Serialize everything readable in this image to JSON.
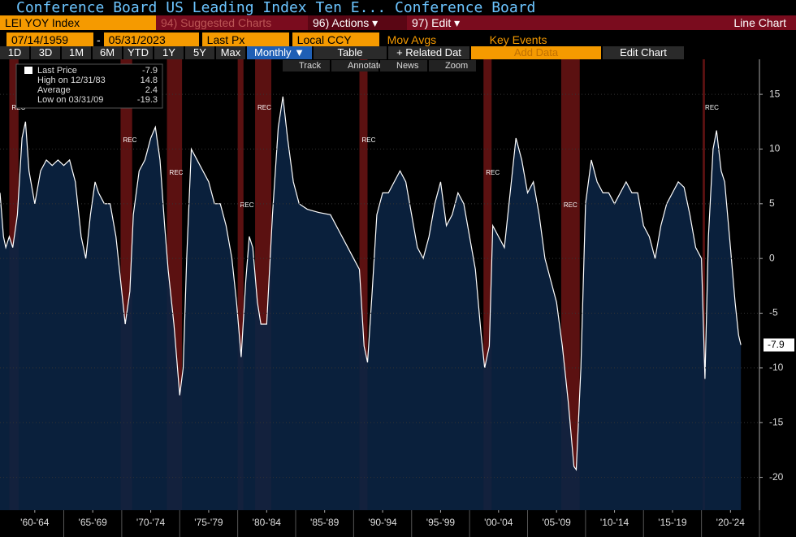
{
  "header": {
    "title": "Conference Board US Leading Index Ten E...  Conference Board",
    "ticker": "LEI YOY Index",
    "suggested": "94) Suggested Charts",
    "actions": "96) Actions ▾",
    "edit": "97) Edit ▾",
    "chart_kind": "Line Chart",
    "start_date": "07/14/1959",
    "dash": "-",
    "end_date": "05/31/2023",
    "field": "Last Px",
    "currency": "Local CCY",
    "mov_avgs": "Mov Avgs",
    "key_events": "Key Events",
    "periods": [
      "1D",
      "3D",
      "1M",
      "6M",
      "YTD",
      "1Y",
      "5Y",
      "Max"
    ],
    "frequency": "Monthly ▼",
    "table": "Table",
    "related": "+ Related Dat",
    "add_data": "Add Data",
    "edit_chart": "Edit Chart",
    "tools": [
      "Track",
      "Annotate",
      "News",
      "Zoom"
    ]
  },
  "legend": {
    "rows": [
      [
        "Last Price",
        "-7.9"
      ],
      [
        "High on 12/31/83",
        "14.8"
      ],
      [
        "Average",
        "2.4"
      ],
      [
        "Low on 03/31/09",
        "-19.3"
      ]
    ]
  },
  "chart_data": {
    "type": "area",
    "color": "#ffffff",
    "fill": "#0b2342",
    "xlim": [
      1959.5,
      2025.0
    ],
    "ylim": [
      -23,
      18.2
    ],
    "yticks": [
      15,
      10,
      5,
      0,
      -5,
      -10,
      -15,
      -20
    ],
    "xticks": [
      {
        "value": 1962.5,
        "label": "'60-'64"
      },
      {
        "value": 1967.5,
        "label": "'65-'69"
      },
      {
        "value": 1972.5,
        "label": "'70-'74"
      },
      {
        "value": 1977.5,
        "label": "'75-'79"
      },
      {
        "value": 1982.5,
        "label": "'80-'84"
      },
      {
        "value": 1987.5,
        "label": "'85-'89"
      },
      {
        "value": 1992.5,
        "label": "'90-'94"
      },
      {
        "value": 1997.5,
        "label": "'95-'99"
      },
      {
        "value": 2002.5,
        "label": "'00-'04"
      },
      {
        "value": 2007.5,
        "label": "'05-'09"
      },
      {
        "value": 2012.5,
        "label": "'10-'14"
      },
      {
        "value": 2017.5,
        "label": "'15-'19"
      },
      {
        "value": 2022.5,
        "label": "'20-'24"
      }
    ],
    "last_value_tag": "-7.9",
    "recession_label": "REC",
    "recessions": [
      [
        1960.3,
        1961.1
      ],
      [
        1969.9,
        1970.9
      ],
      [
        1973.9,
        1975.2
      ],
      [
        1980.0,
        1980.5
      ],
      [
        1981.5,
        1982.9
      ],
      [
        1990.5,
        1991.2
      ],
      [
        2001.2,
        2001.9
      ],
      [
        2007.9,
        2009.5
      ],
      [
        2020.1,
        2020.3
      ]
    ],
    "x": [
      1959.5,
      1959.8,
      1960.0,
      1960.3,
      1960.6,
      1961.0,
      1961.4,
      1961.7,
      1962.0,
      1962.5,
      1963.0,
      1963.5,
      1964.0,
      1964.5,
      1965.0,
      1965.5,
      1966.0,
      1966.5,
      1966.9,
      1967.3,
      1967.7,
      1968.0,
      1968.5,
      1969.0,
      1969.5,
      1970.0,
      1970.3,
      1970.7,
      1971.0,
      1971.5,
      1972.0,
      1972.5,
      1972.9,
      1973.3,
      1973.7,
      1974.0,
      1974.5,
      1975.0,
      1975.3,
      1975.6,
      1976.0,
      1976.5,
      1977.0,
      1977.5,
      1978.0,
      1978.5,
      1979.0,
      1979.5,
      1979.9,
      1980.3,
      1980.7,
      1981.0,
      1981.3,
      1981.7,
      1982.0,
      1982.5,
      1983.0,
      1983.5,
      1983.9,
      1984.3,
      1984.8,
      1985.3,
      1986.0,
      1987.0,
      1988.0,
      1989.0,
      1989.5,
      1990.0,
      1990.5,
      1990.9,
      1991.2,
      1991.6,
      1992.0,
      1992.5,
      1993.0,
      1993.5,
      1994.0,
      1994.5,
      1995.0,
      1995.5,
      1996.0,
      1996.5,
      1997.0,
      1997.5,
      1998.0,
      1998.5,
      1999.0,
      1999.5,
      2000.0,
      2000.5,
      2001.0,
      2001.3,
      2001.7,
      2002.0,
      2002.5,
      2003.0,
      2003.5,
      2004.0,
      2004.5,
      2005.0,
      2005.5,
      2006.0,
      2006.5,
      2007.0,
      2007.5,
      2008.0,
      2008.5,
      2009.0,
      2009.2,
      2009.6,
      2010.0,
      2010.5,
      2011.0,
      2011.5,
      2012.0,
      2012.5,
      2013.0,
      2013.5,
      2014.0,
      2014.5,
      2015.0,
      2015.5,
      2016.0,
      2016.5,
      2017.0,
      2017.5,
      2018.0,
      2018.5,
      2019.0,
      2019.5,
      2020.0,
      2020.3,
      2020.6,
      2021.0,
      2021.3,
      2021.7,
      2022.0,
      2022.5,
      2022.9,
      2023.2,
      2023.4
    ],
    "values": [
      6,
      2,
      1,
      2,
      1,
      4,
      11,
      12.5,
      8,
      5,
      8,
      9,
      8.5,
      9,
      8.5,
      9,
      7,
      2,
      0,
      4,
      7,
      6,
      5,
      5,
      2,
      -3,
      -6,
      -3,
      4,
      8,
      9,
      11,
      12,
      9,
      3,
      -1,
      -6,
      -12.5,
      -10,
      0,
      10,
      9,
      8,
      7,
      5,
      5,
      3,
      0,
      -4,
      -9,
      -2,
      2,
      1,
      -4,
      -6,
      -6,
      4,
      12,
      14.8,
      11,
      7,
      5,
      4.5,
      4.2,
      4,
      2,
      1,
      0,
      -1,
      -8,
      -9.5,
      -3,
      4,
      6,
      6,
      7,
      8,
      7,
      4,
      1,
      0,
      2,
      5,
      7,
      3,
      4,
      6,
      5,
      2,
      -1,
      -7,
      -10,
      -8,
      3,
      2,
      1,
      6,
      11,
      9,
      6,
      7,
      4,
      0,
      -2,
      -4,
      -8,
      -13,
      -19,
      -19.3,
      -10,
      5,
      9,
      7,
      6,
      6,
      5,
      6,
      7,
      6,
      6,
      3,
      2,
      0,
      3,
      5,
      6,
      7,
      6.5,
      4,
      1,
      0,
      -11,
      2,
      10,
      11.7,
      8,
      7,
      1,
      -4,
      -7,
      -7.9
    ]
  }
}
